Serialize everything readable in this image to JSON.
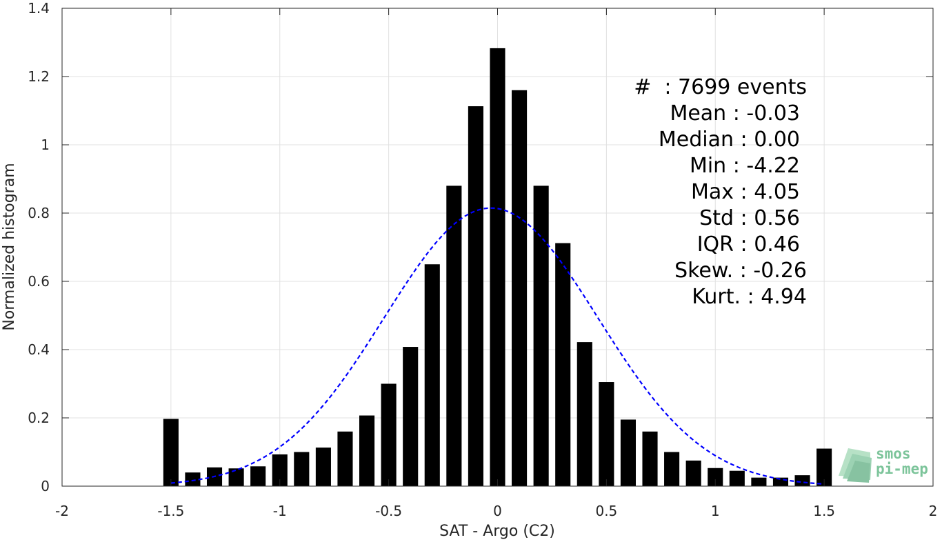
{
  "chart_data": {
    "type": "bar",
    "xlabel": "SAT - Argo (C2)",
    "ylabel": "Normalized histogram",
    "xlim": [
      -2,
      2
    ],
    "ylim": [
      0,
      1.4
    ],
    "xticks": [
      "-2",
      "-1.5",
      "-1",
      "-0.5",
      "0",
      "0.5",
      "1",
      "1.5",
      "2"
    ],
    "yticks": [
      "0",
      "0.2",
      "0.4",
      "0.6",
      "0.8",
      "1",
      "1.2",
      "1.4"
    ],
    "grid": true,
    "bin_width": 0.1,
    "x": [
      -1.5,
      -1.4,
      -1.3,
      -1.2,
      -1.1,
      -1.0,
      -0.9,
      -0.8,
      -0.7,
      -0.6,
      -0.5,
      -0.4,
      -0.3,
      -0.2,
      -0.1,
      0.0,
      0.1,
      0.2,
      0.3,
      0.4,
      0.5,
      0.6,
      0.7,
      0.8,
      0.9,
      1.0,
      1.1,
      1.2,
      1.3,
      1.4,
      1.5
    ],
    "values": [
      0.197,
      0.04,
      0.055,
      0.052,
      0.058,
      0.093,
      0.1,
      0.113,
      0.16,
      0.207,
      0.3,
      0.408,
      0.65,
      0.88,
      1.113,
      1.283,
      1.16,
      0.88,
      0.712,
      0.422,
      0.305,
      0.195,
      0.16,
      0.1,
      0.075,
      0.053,
      0.045,
      0.025,
      0.025,
      0.032,
      0.11
    ],
    "fit_curve": {
      "type": "gaussian",
      "mean": -0.03,
      "std": 0.49,
      "range": [
        -1.5,
        1.5
      ],
      "color": "#0000ff",
      "style": "dashed"
    },
    "bar_color": "#000000"
  },
  "stats": [
    "#  : 7699 events",
    "Mean : -0.03",
    "Median : 0.00",
    "Min : -4.22",
    "Max : 4.05",
    "Std : 0.56",
    "IQR : 0.46",
    "Skew. : -0.26",
    "Kurt. : 4.94"
  ],
  "logo": {
    "line1": "smos",
    "line2": "pi-mep",
    "color": "#7cc49a"
  }
}
